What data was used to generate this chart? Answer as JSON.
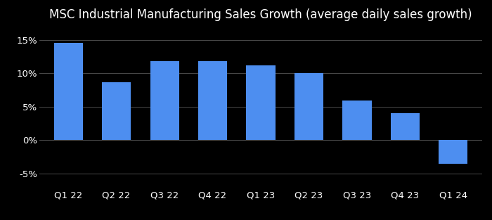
{
  "title": "MSC Industrial Manufacturing Sales Growth (average daily sales growth)",
  "categories": [
    "Q1 22",
    "Q2 22",
    "Q3 22",
    "Q4 22",
    "Q1 23",
    "Q2 23",
    "Q3 23",
    "Q4 23",
    "Q1 24"
  ],
  "values": [
    14.5,
    8.7,
    11.8,
    11.8,
    11.2,
    10.0,
    5.9,
    4.0,
    -3.5
  ],
  "bar_color": "#4d8ef0",
  "background_color": "#000000",
  "text_color": "#ffffff",
  "grid_color": "#555555",
  "ylim": [
    -7,
    17
  ],
  "yticks": [
    -5,
    0,
    5,
    10,
    15
  ],
  "ytick_labels": [
    "-5%",
    "0%",
    "5%",
    "10%",
    "15%"
  ],
  "title_fontsize": 12,
  "tick_fontsize": 9.5
}
